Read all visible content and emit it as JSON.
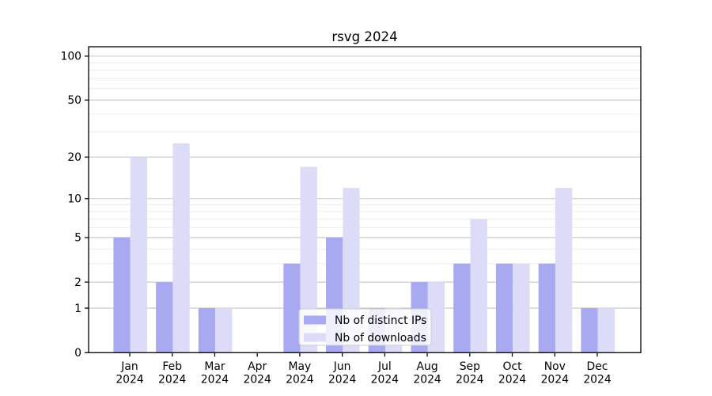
{
  "chart_data": {
    "type": "bar",
    "title": "rsvg 2024",
    "categories": [
      "Jan 2024",
      "Feb 2024",
      "Mar 2024",
      "Apr 2024",
      "May 2024",
      "Jun 2024",
      "Jul 2024",
      "Aug 2024",
      "Sep 2024",
      "Oct 2024",
      "Nov 2024",
      "Dec 2024"
    ],
    "series": [
      {
        "name": "Nb of distinct IPs",
        "color": "#a9a9f1",
        "values": [
          5,
          2,
          1,
          0,
          3,
          5,
          1,
          2,
          3,
          3,
          3,
          1
        ]
      },
      {
        "name": "Nb of downloads",
        "color": "#dcdcf8",
        "values": [
          20,
          25,
          1,
          0,
          17,
          12,
          1,
          2,
          7,
          3,
          12,
          1
        ]
      }
    ],
    "yscale": "log1p",
    "ylim": [
      0,
      115
    ],
    "yticks": [
      0,
      1,
      2,
      5,
      10,
      20,
      50,
      100
    ],
    "y_minor_gridlines": [
      3,
      4,
      6,
      7,
      8,
      9,
      30,
      40,
      60,
      70,
      80,
      90
    ],
    "grid": "horizontal, major and minor, behind bars",
    "legend_position": "lower center",
    "xlabel": "",
    "ylabel": ""
  }
}
